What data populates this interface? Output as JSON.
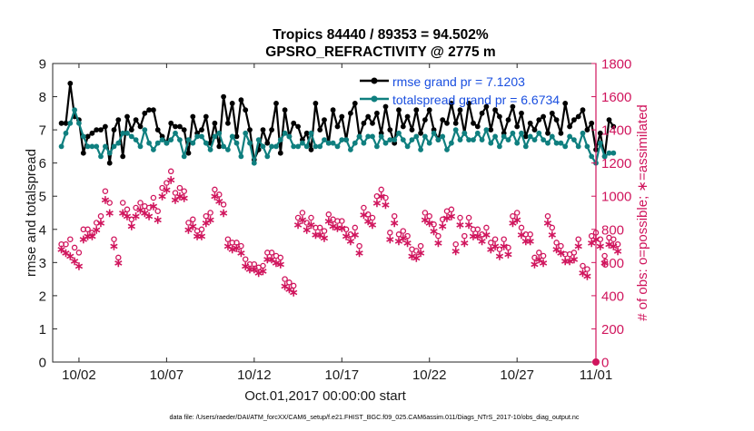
{
  "chart_data": {
    "type": "line",
    "title": "Tropics 84440 / 89353 = 94.502%",
    "subtitle": "GPSRO_REFRACTIVITY @ 2775 m",
    "xlabel": "Oct.01,2017 00:00:00 start",
    "ylabel": "rmse and totalspread",
    "y2label": "# of obs: o=possible; ∗=assimilated",
    "footer": "data file: /Users/raeder/DAI/ATM_forcXX/CAM6_setup/f.e21.FHIST_BGC.f09_025.CAM6assim.011/Diags_NTrS_2017-10/obs_diag_output.nc",
    "xlim": [
      0.5,
      31.5
    ],
    "ylim": [
      0,
      9
    ],
    "y2lim": [
      0,
      1800
    ],
    "x_ticks": [
      {
        "value": 2,
        "label": "10/02"
      },
      {
        "value": 7,
        "label": "10/07"
      },
      {
        "value": 12,
        "label": "10/12"
      },
      {
        "value": 17,
        "label": "10/17"
      },
      {
        "value": 22,
        "label": "10/22"
      },
      {
        "value": 27,
        "label": "10/27"
      },
      {
        "value": 32,
        "label": "11/01"
      }
    ],
    "y_ticks": [
      "0",
      "1",
      "2",
      "3",
      "4",
      "5",
      "6",
      "7",
      "8",
      "9"
    ],
    "y2_ticks": [
      "0",
      "200",
      "400",
      "600",
      "800",
      "1000",
      "1200",
      "1400",
      "1600",
      "1800"
    ],
    "x_start": 1.0,
    "x_step": 0.25,
    "series": [
      {
        "name": "rmse grand pr = 7.1203",
        "axis": "left",
        "color": "#000000",
        "values": [
          7.2,
          7.2,
          8.4,
          7.4,
          7.3,
          6.3,
          6.8,
          6.9,
          7.0,
          7.0,
          7.1,
          6.0,
          7.0,
          7.3,
          6.2,
          7.4,
          7.0,
          7.3,
          7.1,
          7.5,
          7.6,
          7.6,
          7.0,
          6.8,
          6.6,
          7.2,
          7.1,
          7.1,
          7.0,
          6.3,
          7.4,
          6.9,
          7.0,
          7.4,
          6.6,
          7.2,
          6.5,
          8.0,
          7.2,
          7.8,
          6.8,
          7.9,
          7.6,
          7.0,
          6.1,
          6.4,
          7.0,
          6.6,
          7.0,
          7.8,
          6.3,
          7.6,
          6.8,
          7.2,
          7.1,
          6.7,
          6.9,
          6.4,
          7.8,
          7.0,
          7.3,
          6.6,
          7.6,
          7.1,
          7.4,
          6.7,
          7.5,
          7.8,
          6.8,
          7.2,
          7.4,
          7.2,
          7.5,
          6.9,
          7.7,
          7.0,
          6.6,
          7.6,
          7.1,
          7.4,
          7.0,
          7.6,
          6.9,
          7.3,
          7.6,
          7.0,
          6.7,
          7.3,
          7.2,
          7.8,
          7.2,
          7.6,
          6.9,
          7.8,
          7.2,
          7.1,
          7.5,
          7.7,
          7.0,
          7.6,
          7.4,
          6.9,
          7.3,
          7.7,
          7.1,
          7.5,
          6.8,
          7.2,
          7.0,
          7.3,
          7.4,
          6.9,
          7.5,
          7.3,
          6.9,
          7.8,
          7.1,
          7.3,
          7.4,
          7.6,
          7.0,
          7.2,
          6.4,
          6.9,
          6.2,
          7.3,
          7.1
        ]
      },
      {
        "name": "totalspread grand pr = 6.6734",
        "axis": "left",
        "color": "#0f7f7f",
        "values": [
          6.5,
          6.9,
          7.2,
          7.6,
          7.2,
          6.8,
          6.5,
          6.5,
          6.5,
          6.2,
          6.5,
          6.3,
          6.5,
          6.6,
          6.9,
          6.9,
          6.8,
          6.7,
          6.5,
          7.0,
          6.6,
          6.4,
          6.6,
          6.7,
          6.6,
          6.7,
          6.9,
          6.7,
          6.2,
          6.7,
          6.6,
          6.8,
          6.8,
          6.6,
          6.4,
          6.8,
          6.9,
          6.5,
          6.4,
          6.8,
          6.6,
          6.2,
          6.9,
          6.6,
          6.0,
          6.7,
          6.5,
          6.2,
          6.5,
          6.5,
          6.7,
          6.9,
          6.8,
          6.5,
          6.5,
          6.6,
          6.5,
          6.9,
          6.5,
          6.5,
          6.7,
          6.6,
          6.6,
          6.5,
          6.7,
          6.7,
          6.4,
          6.6,
          6.8,
          6.6,
          6.8,
          6.8,
          6.5,
          6.8,
          6.6,
          6.7,
          6.7,
          6.9,
          6.7,
          6.5,
          6.7,
          6.8,
          6.4,
          6.8,
          6.6,
          6.9,
          6.7,
          6.8,
          6.4,
          6.6,
          7.0,
          6.7,
          6.9,
          6.7,
          6.7,
          6.9,
          6.7,
          7.0,
          6.6,
          6.8,
          6.5,
          6.8,
          6.7,
          6.9,
          6.6,
          6.9,
          6.5,
          6.8,
          6.7,
          6.9,
          6.7,
          6.6,
          6.8,
          6.6,
          6.6,
          6.5,
          6.8,
          6.7,
          6.5,
          6.9,
          6.5,
          6.2,
          6.0,
          6.6,
          6.2,
          6.3,
          6.3
        ]
      },
      {
        "name": "possible obs",
        "axis": "right",
        "marker": "o",
        "color": "#d0155d",
        "values": [
          710,
          710,
          740,
          690,
          660,
          800,
          800,
          780,
          840,
          880,
          1030,
          960,
          740,
          630,
          960,
          920,
          860,
          930,
          960,
          940,
          930,
          990,
          910,
          1050,
          1080,
          1150,
          1020,
          1050,
          1030,
          840,
          860,
          790,
          800,
          880,
          900,
          1040,
          1010,
          950,
          740,
          720,
          720,
          700,
          620,
          590,
          590,
          570,
          580,
          660,
          660,
          640,
          630,
          500,
          480,
          460,
          870,
          900,
          840,
          870,
          810,
          810,
          790,
          890,
          860,
          850,
          850,
          800,
          770,
          810,
          700,
          930,
          890,
          870,
          1000,
          1040,
          990,
          780,
          880,
          770,
          790,
          760,
          680,
          670,
          700,
          900,
          880,
          830,
          760,
          860,
          910,
          920,
          710,
          870,
          760,
          870,
          800,
          800,
          770,
          810,
          720,
          740,
          680,
          740,
          690,
          880,
          900,
          810,
          770,
          770,
          630,
          660,
          640,
          880,
          810,
          720,
          700,
          650,
          650,
          660,
          740,
          580,
          560,
          760,
          780,
          740,
          640,
          750,
          740,
          710
        ]
      },
      {
        "name": "assimilated obs",
        "axis": "right",
        "marker": "*",
        "color": "#d0155d",
        "values": [
          680,
          660,
          640,
          610,
          580,
          740,
          760,
          760,
          800,
          840,
          980,
          900,
          700,
          600,
          900,
          880,
          820,
          880,
          920,
          900,
          880,
          940,
          860,
          1000,
          1040,
          1100,
          980,
          1000,
          990,
          800,
          820,
          760,
          760,
          840,
          860,
          1000,
          970,
          900,
          700,
          680,
          690,
          660,
          580,
          560,
          560,
          540,
          550,
          620,
          620,
          600,
          590,
          460,
          440,
          420,
          830,
          860,
          800,
          830,
          770,
          770,
          750,
          850,
          820,
          810,
          810,
          760,
          730,
          770,
          660,
          890,
          850,
          830,
          960,
          1000,
          950,
          740,
          840,
          730,
          750,
          720,
          640,
          630,
          660,
          860,
          840,
          790,
          720,
          820,
          870,
          880,
          670,
          830,
          720,
          830,
          760,
          760,
          730,
          770,
          680,
          700,
          640,
          700,
          650,
          840,
          860,
          770,
          730,
          730,
          590,
          620,
          600,
          840,
          770,
          680,
          660,
          610,
          610,
          620,
          700,
          540,
          520,
          720,
          740,
          700,
          600,
          710,
          700,
          670
        ]
      }
    ],
    "legend_position": "top-right",
    "grid": false
  }
}
